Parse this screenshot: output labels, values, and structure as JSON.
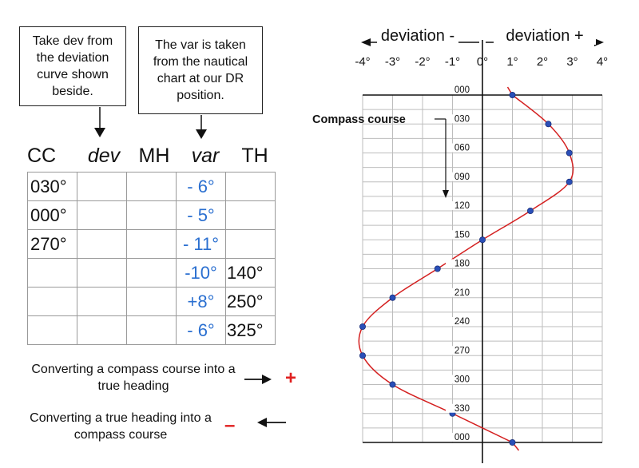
{
  "callouts": {
    "dev_note": "Take dev from\nthe deviation\ncurve shown\nbeside.",
    "var_note": "The var is taken\nfrom the nautical\nchart at our DR\nposition."
  },
  "table": {
    "headers": {
      "cc": "CC",
      "dev": "dev",
      "mh": "MH",
      "var": "var",
      "th": "TH"
    },
    "rows": [
      {
        "cc": "030°",
        "dev": "",
        "mh": "",
        "var": "- 6°",
        "th": ""
      },
      {
        "cc": "000°",
        "dev": "",
        "mh": "",
        "var": "- 5°",
        "th": ""
      },
      {
        "cc": "270°",
        "dev": "",
        "mh": "",
        "var": "- 11°",
        "th": ""
      },
      {
        "cc": "",
        "dev": "",
        "mh": "",
        "var": "-10°",
        "th": "140°"
      },
      {
        "cc": "",
        "dev": "",
        "mh": "",
        "var": "+8°",
        "th": "250°"
      },
      {
        "cc": "",
        "dev": "",
        "mh": "",
        "var": "- 6°",
        "th": "325°"
      }
    ]
  },
  "rules": {
    "to_true": "Converting a compass course into a true heading",
    "to_true_sign": "+",
    "to_compass": "Converting a true heading into a compass course",
    "to_compass_sign": "–"
  },
  "colors": {
    "variation_text": "#2a6fd0",
    "sign": "#e02020",
    "curve": "#d42020",
    "points": "#2a4fb8"
  },
  "chart_data": {
    "type": "line",
    "axis_title_negative": "deviation -",
    "axis_title_positive": "deviation +",
    "compass_course_label": "Compass course",
    "x_ticks": [
      "-4°",
      "-3°",
      "-2°",
      "-1°",
      "0°",
      "1°",
      "2°",
      "3°",
      "4°"
    ],
    "x_range": [
      -4,
      4
    ],
    "y_labels": [
      "000",
      "030",
      "060",
      "090",
      "120",
      "150",
      "180",
      "210",
      "240",
      "270",
      "300",
      "330",
      "000"
    ],
    "y_range": [
      0,
      360
    ],
    "grid": true,
    "points": [
      {
        "course": 0,
        "deviation": 1
      },
      {
        "course": 30,
        "deviation": 2.2
      },
      {
        "course": 60,
        "deviation": 2.9
      },
      {
        "course": 90,
        "deviation": 2.9
      },
      {
        "course": 120,
        "deviation": 1.6
      },
      {
        "course": 150,
        "deviation": 0
      },
      {
        "course": 180,
        "deviation": -1.5
      },
      {
        "course": 210,
        "deviation": -3
      },
      {
        "course": 240,
        "deviation": -4
      },
      {
        "course": 270,
        "deviation": -4
      },
      {
        "course": 300,
        "deviation": -3
      },
      {
        "course": 330,
        "deviation": -1
      },
      {
        "course": 360,
        "deviation": 1
      }
    ]
  }
}
